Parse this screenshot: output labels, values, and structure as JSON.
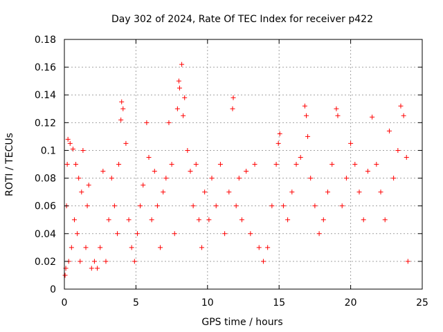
{
  "chart_data": {
    "type": "scatter",
    "title": "Day 302 of 2024, Rate Of TEC Index for receiver p422",
    "xlabel": "GPS time / hours",
    "ylabel": "ROTI / TECUs",
    "xlim": [
      0,
      25
    ],
    "ylim": [
      0,
      0.18
    ],
    "xticks": [
      0,
      5,
      10,
      15,
      20,
      25
    ],
    "yticks": [
      0,
      0.02,
      0.04,
      0.06,
      0.08,
      0.1,
      0.12,
      0.14,
      0.16,
      0.18
    ],
    "xtick_labels": [
      "0",
      "5",
      "10",
      "15",
      "20",
      "25"
    ],
    "ytick_labels": [
      "0",
      "0.02",
      "0.04",
      "0.06",
      "0.08",
      "0.1",
      "0.12",
      "0.14",
      "0.16",
      "0.18"
    ],
    "grid": true,
    "marker": "plus",
    "color": "#ff0000",
    "series": [
      {
        "points": [
          [
            0.05,
            0.01
          ],
          [
            0.1,
            0.015
          ],
          [
            0.15,
            0.06
          ],
          [
            0.2,
            0.09
          ],
          [
            0.25,
            0.108
          ],
          [
            0.3,
            0.02
          ],
          [
            0.4,
            0.105
          ],
          [
            0.5,
            0.03
          ],
          [
            0.6,
            0.101
          ],
          [
            0.7,
            0.05
          ],
          [
            0.8,
            0.09
          ],
          [
            0.9,
            0.04
          ],
          [
            1.0,
            0.08
          ],
          [
            1.1,
            0.02
          ],
          [
            1.2,
            0.07
          ],
          [
            1.3,
            0.1
          ],
          [
            1.5,
            0.03
          ],
          [
            1.6,
            0.06
          ],
          [
            1.7,
            0.075
          ],
          [
            1.9,
            0.015
          ],
          [
            2.1,
            0.02
          ],
          [
            2.3,
            0.015
          ],
          [
            2.5,
            0.03
          ],
          [
            2.7,
            0.085
          ],
          [
            2.9,
            0.02
          ],
          [
            3.1,
            0.05
          ],
          [
            3.3,
            0.08
          ],
          [
            3.5,
            0.06
          ],
          [
            3.7,
            0.04
          ],
          [
            3.8,
            0.09
          ],
          [
            3.95,
            0.122
          ],
          [
            4.0,
            0.135
          ],
          [
            4.1,
            0.13
          ],
          [
            4.3,
            0.105
          ],
          [
            4.5,
            0.05
          ],
          [
            4.7,
            0.03
          ],
          [
            4.9,
            0.02
          ],
          [
            5.1,
            0.04
          ],
          [
            5.3,
            0.06
          ],
          [
            5.5,
            0.075
          ],
          [
            5.75,
            0.12
          ],
          [
            5.9,
            0.095
          ],
          [
            6.1,
            0.05
          ],
          [
            6.3,
            0.085
          ],
          [
            6.5,
            0.06
          ],
          [
            6.7,
            0.03
          ],
          [
            6.9,
            0.07
          ],
          [
            7.1,
            0.08
          ],
          [
            7.3,
            0.12
          ],
          [
            7.5,
            0.09
          ],
          [
            7.7,
            0.04
          ],
          [
            7.9,
            0.13
          ],
          [
            8.0,
            0.15
          ],
          [
            8.05,
            0.145
          ],
          [
            8.2,
            0.162
          ],
          [
            8.3,
            0.125
          ],
          [
            8.4,
            0.138
          ],
          [
            8.6,
            0.1
          ],
          [
            8.8,
            0.085
          ],
          [
            9.0,
            0.06
          ],
          [
            9.2,
            0.09
          ],
          [
            9.4,
            0.05
          ],
          [
            9.6,
            0.03
          ],
          [
            9.8,
            0.07
          ],
          [
            10.1,
            0.05
          ],
          [
            10.3,
            0.08
          ],
          [
            10.6,
            0.06
          ],
          [
            10.9,
            0.09
          ],
          [
            11.2,
            0.04
          ],
          [
            11.5,
            0.07
          ],
          [
            11.75,
            0.13
          ],
          [
            11.8,
            0.138
          ],
          [
            12.0,
            0.06
          ],
          [
            12.2,
            0.08
          ],
          [
            12.4,
            0.05
          ],
          [
            12.7,
            0.085
          ],
          [
            13.0,
            0.04
          ],
          [
            13.3,
            0.09
          ],
          [
            13.6,
            0.03
          ],
          [
            13.9,
            0.02
          ],
          [
            14.2,
            0.03
          ],
          [
            14.5,
            0.06
          ],
          [
            14.8,
            0.09
          ],
          [
            14.95,
            0.105
          ],
          [
            15.05,
            0.112
          ],
          [
            15.3,
            0.06
          ],
          [
            15.6,
            0.05
          ],
          [
            15.9,
            0.07
          ],
          [
            16.2,
            0.09
          ],
          [
            16.5,
            0.095
          ],
          [
            16.8,
            0.132
          ],
          [
            16.9,
            0.125
          ],
          [
            17.0,
            0.11
          ],
          [
            17.2,
            0.08
          ],
          [
            17.5,
            0.06
          ],
          [
            17.8,
            0.04
          ],
          [
            18.1,
            0.05
          ],
          [
            18.4,
            0.07
          ],
          [
            18.7,
            0.09
          ],
          [
            19.0,
            0.13
          ],
          [
            19.1,
            0.125
          ],
          [
            19.4,
            0.06
          ],
          [
            19.7,
            0.08
          ],
          [
            20.0,
            0.105
          ],
          [
            20.3,
            0.09
          ],
          [
            20.6,
            0.07
          ],
          [
            20.9,
            0.05
          ],
          [
            21.2,
            0.085
          ],
          [
            21.5,
            0.124
          ],
          [
            21.8,
            0.09
          ],
          [
            22.1,
            0.07
          ],
          [
            22.4,
            0.05
          ],
          [
            22.7,
            0.114
          ],
          [
            23.0,
            0.08
          ],
          [
            23.3,
            0.1
          ],
          [
            23.5,
            0.132
          ],
          [
            23.7,
            0.125
          ],
          [
            23.9,
            0.095
          ],
          [
            24.0,
            0.02
          ]
        ]
      }
    ]
  }
}
